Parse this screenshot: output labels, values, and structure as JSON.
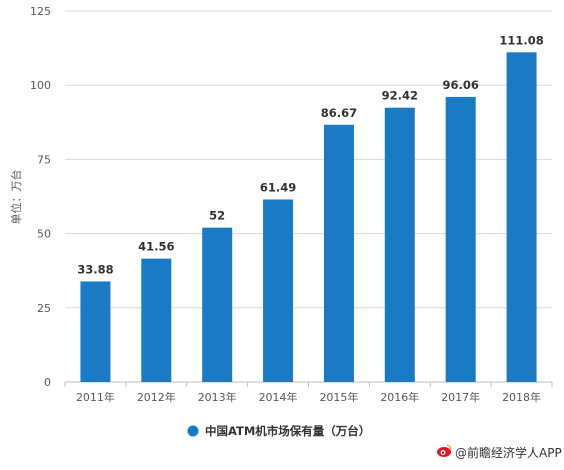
{
  "colors": {
    "bar": "#1a7ac4",
    "grid": "#d9d9d9",
    "axis": "#bfbfbf",
    "text": "#595959"
  },
  "chart_data": {
    "type": "bar",
    "categories": [
      "2011年",
      "2012年",
      "2013年",
      "2014年",
      "2015年",
      "2016年",
      "2017年",
      "2018年"
    ],
    "series": [
      {
        "name": "中国ATM机市场保有量（万台）",
        "values": [
          33.88,
          41.56,
          52,
          61.49,
          86.67,
          92.42,
          96.06,
          111.08
        ]
      }
    ],
    "data_labels": [
      "33.88",
      "41.56",
      "52",
      "61.49",
      "86.67",
      "92.42",
      "96.06",
      "111.08"
    ],
    "ylabel": "单位：万台",
    "ylim": [
      0,
      125
    ],
    "yticks": [
      0,
      25,
      50,
      75,
      100,
      125
    ],
    "grid": true,
    "legend_position": "bottom"
  },
  "source": "@前瞻经济学人APP",
  "source_icon": "weibo-icon"
}
